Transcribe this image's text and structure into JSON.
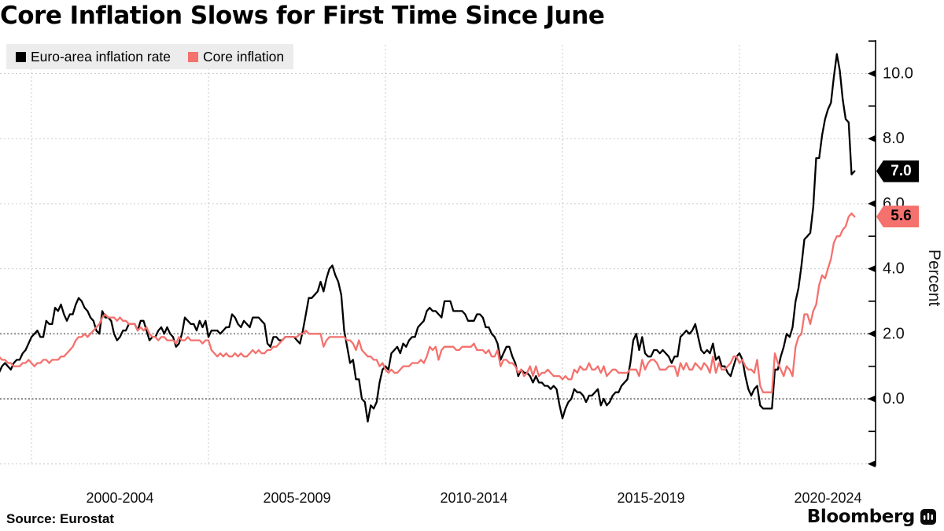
{
  "title": "Core Inflation Slows for First Time Since June",
  "source": "Source: Eurostat",
  "branding": {
    "logo_text": "Bloomberg"
  },
  "legend": {
    "items": [
      {
        "label": "Euro-area inflation rate",
        "color": "#000000"
      },
      {
        "label": "Core inflation",
        "color": "#f4716d"
      }
    ],
    "background": "#ececec"
  },
  "y_axis": {
    "title": "Percent",
    "tick_values": [
      10,
      8,
      6,
      4,
      2,
      0
    ],
    "tick_labels": [
      "10.0",
      "8.0",
      "6.0",
      "4.0",
      "2.0",
      "0.0"
    ],
    "minor_tick_values": [
      11,
      9,
      5,
      3,
      1,
      -1
    ],
    "arrow_tick_values": [
      10,
      8,
      6,
      4,
      2,
      0,
      -2
    ],
    "range": [
      -2.2,
      11.0
    ],
    "gridlines_light": [
      10,
      8,
      6,
      4,
      -2
    ],
    "gridlines_dark": [
      2,
      0
    ],
    "end_labels": [
      {
        "text": "7.0",
        "value": 7.0,
        "bg": "#000000",
        "fg": "#ffffff"
      },
      {
        "text": "5.6",
        "value": 5.6,
        "bg": "#f4716d",
        "fg": "#000000"
      }
    ]
  },
  "x_axis": {
    "gridline_years": [
      2000,
      2005,
      2010,
      2015,
      2020
    ],
    "labels": [
      {
        "text": "2000-2004",
        "center_year": 2002.5
      },
      {
        "text": "2005-2009",
        "center_year": 2007.5
      },
      {
        "text": "2010-2014",
        "center_year": 2012.5
      },
      {
        "text": "2015-2019",
        "center_year": 2017.5
      },
      {
        "text": "2020-2024",
        "center_year": 2022.5
      }
    ]
  },
  "chart_data": {
    "type": "line",
    "title": "Core Inflation Slows for First Time Since June",
    "ylabel": "Percent",
    "ylim": [
      -2.2,
      11.0
    ],
    "x_start": "1999-01",
    "x_end": "2023-04",
    "frequency": "monthly",
    "grid": "dotted",
    "legend_position": "top-left",
    "series": [
      {
        "name": "Euro-area inflation rate",
        "color": "#000000",
        "latest_label": "7.0",
        "values": [
          0.8,
          0.8,
          1.0,
          1.1,
          1.0,
          0.9,
          1.1,
          1.2,
          1.2,
          1.4,
          1.5,
          1.7,
          1.9,
          2.0,
          2.1,
          1.9,
          1.9,
          2.4,
          2.3,
          2.3,
          2.8,
          2.7,
          2.9,
          2.6,
          2.4,
          2.6,
          2.6,
          2.9,
          3.1,
          3.0,
          2.8,
          2.7,
          2.5,
          2.4,
          2.1,
          2.0,
          2.7,
          2.5,
          2.5,
          2.4,
          2.0,
          1.8,
          1.9,
          2.1,
          2.1,
          2.3,
          2.3,
          2.3,
          2.1,
          2.4,
          2.4,
          2.1,
          1.8,
          1.9,
          1.9,
          2.1,
          2.2,
          2.0,
          2.2,
          2.0,
          1.9,
          1.6,
          1.7,
          2.0,
          2.5,
          2.4,
          2.3,
          2.3,
          2.1,
          2.4,
          2.2,
          2.4,
          1.9,
          2.1,
          2.1,
          2.1,
          2.0,
          2.1,
          2.2,
          2.2,
          2.6,
          2.5,
          2.3,
          2.2,
          2.4,
          2.3,
          2.2,
          2.5,
          2.5,
          2.5,
          2.4,
          2.3,
          1.7,
          1.6,
          1.9,
          1.9,
          1.8,
          1.8,
          1.9,
          1.9,
          1.9,
          1.9,
          1.8,
          1.7,
          2.1,
          2.6,
          3.1,
          3.1,
          3.2,
          3.3,
          3.6,
          3.3,
          3.7,
          4.0,
          4.1,
          3.8,
          3.6,
          3.2,
          2.1,
          1.6,
          1.1,
          1.2,
          0.6,
          0.6,
          0.0,
          -0.1,
          -0.7,
          -0.2,
          -0.3,
          -0.1,
          0.5,
          0.9,
          1.0,
          0.9,
          1.4,
          1.5,
          1.6,
          1.4,
          1.7,
          1.6,
          1.8,
          1.9,
          1.9,
          2.2,
          2.3,
          2.4,
          2.7,
          2.8,
          2.7,
          2.7,
          2.6,
          2.5,
          3.0,
          3.0,
          3.0,
          2.7,
          2.7,
          2.7,
          2.7,
          2.6,
          2.4,
          2.4,
          2.4,
          2.6,
          2.6,
          2.5,
          2.2,
          2.2,
          2.0,
          1.9,
          1.7,
          1.2,
          1.4,
          1.6,
          1.6,
          1.3,
          1.1,
          0.7,
          0.9,
          0.8,
          0.8,
          0.7,
          0.5,
          0.7,
          0.5,
          0.5,
          0.4,
          0.4,
          0.3,
          0.4,
          0.3,
          -0.2,
          -0.6,
          -0.3,
          -0.1,
          0.0,
          0.3,
          0.2,
          0.2,
          0.1,
          -0.1,
          0.1,
          0.1,
          0.2,
          0.3,
          -0.2,
          0.0,
          -0.2,
          -0.1,
          0.1,
          0.2,
          0.2,
          0.4,
          0.5,
          0.6,
          1.1,
          1.8,
          2.0,
          1.5,
          1.9,
          1.4,
          1.3,
          1.3,
          1.5,
          1.5,
          1.4,
          1.5,
          1.4,
          1.3,
          1.1,
          1.3,
          1.3,
          1.9,
          2.0,
          2.1,
          2.0,
          2.1,
          2.3,
          1.9,
          1.5,
          1.4,
          1.5,
          1.4,
          1.7,
          1.2,
          1.3,
          1.0,
          1.0,
          0.8,
          0.7,
          1.0,
          1.3,
          1.4,
          1.2,
          0.7,
          0.3,
          0.1,
          0.3,
          0.4,
          -0.2,
          -0.3,
          -0.3,
          -0.3,
          -0.3,
          0.9,
          0.9,
          1.3,
          1.6,
          2.0,
          1.9,
          2.2,
          3.0,
          3.4,
          4.1,
          4.9,
          5.0,
          5.1,
          5.9,
          7.4,
          7.4,
          8.1,
          8.6,
          8.9,
          9.1,
          9.9,
          10.6,
          10.1,
          9.2,
          8.6,
          8.5,
          6.9,
          7.0
        ]
      },
      {
        "name": "Core inflation",
        "color": "#f4716d",
        "latest_label": "5.6",
        "values": [
          1.4,
          1.3,
          1.2,
          1.2,
          1.1,
          1.1,
          1.0,
          1.0,
          1.0,
          1.1,
          1.1,
          1.2,
          1.1,
          1.0,
          1.1,
          1.1,
          1.2,
          1.2,
          1.1,
          1.2,
          1.2,
          1.2,
          1.3,
          1.3,
          1.4,
          1.5,
          1.6,
          1.8,
          1.9,
          1.9,
          2.0,
          1.9,
          2.0,
          2.1,
          2.2,
          2.3,
          2.5,
          2.6,
          2.5,
          2.5,
          2.5,
          2.4,
          2.5,
          2.4,
          2.4,
          2.3,
          2.3,
          2.3,
          2.1,
          2.2,
          2.1,
          2.2,
          2.0,
          1.9,
          1.9,
          1.8,
          1.9,
          1.9,
          1.8,
          1.8,
          1.8,
          1.7,
          1.9,
          1.8,
          1.8,
          1.9,
          1.8,
          1.8,
          1.8,
          1.8,
          1.7,
          1.8,
          1.8,
          1.5,
          1.4,
          1.3,
          1.4,
          1.3,
          1.4,
          1.3,
          1.3,
          1.4,
          1.3,
          1.4,
          1.3,
          1.3,
          1.4,
          1.5,
          1.4,
          1.5,
          1.4,
          1.4,
          1.5,
          1.5,
          1.6,
          1.6,
          1.7,
          1.8,
          1.9,
          1.9,
          1.9,
          1.9,
          1.9,
          2.0,
          2.0,
          2.1,
          2.0,
          2.0,
          2.0,
          2.0,
          2.0,
          1.6,
          1.8,
          1.9,
          1.9,
          1.9,
          1.9,
          1.9,
          1.9,
          1.8,
          1.8,
          1.7,
          1.5,
          1.8,
          1.5,
          1.4,
          1.3,
          1.3,
          1.2,
          1.2,
          1.0,
          1.1,
          0.9,
          0.8,
          0.9,
          0.8,
          0.8,
          0.9,
          1.0,
          1.0,
          1.0,
          1.1,
          1.1,
          1.1,
          1.2,
          1.1,
          1.3,
          1.6,
          1.5,
          1.6,
          1.2,
          1.5,
          1.6,
          1.6,
          1.6,
          1.6,
          1.5,
          1.5,
          1.6,
          1.6,
          1.6,
          1.6,
          1.7,
          1.5,
          1.5,
          1.5,
          1.4,
          1.5,
          1.3,
          1.3,
          1.5,
          1.0,
          1.2,
          1.2,
          1.1,
          1.1,
          1.0,
          0.8,
          0.9,
          0.7,
          0.8,
          1.0,
          0.7,
          1.0,
          0.7,
          0.8,
          0.8,
          0.9,
          0.8,
          0.7,
          0.7,
          0.7,
          0.6,
          0.7,
          0.6,
          0.6,
          0.9,
          0.8,
          1.0,
          0.9,
          0.9,
          1.1,
          0.9,
          0.9,
          1.0,
          0.8,
          1.0,
          0.7,
          0.8,
          0.9,
          0.9,
          0.8,
          0.8,
          0.8,
          0.8,
          0.9,
          0.9,
          0.9,
          0.7,
          1.2,
          0.9,
          1.1,
          1.2,
          1.2,
          1.1,
          0.9,
          0.9,
          0.9,
          1.0,
          1.0,
          1.0,
          0.7,
          1.1,
          0.9,
          1.1,
          0.9,
          0.9,
          1.1,
          1.0,
          0.9,
          1.1,
          1.0,
          0.8,
          1.3,
          0.8,
          1.1,
          0.9,
          0.9,
          1.0,
          1.1,
          1.3,
          1.3,
          1.1,
          1.2,
          1.0,
          0.9,
          0.9,
          0.8,
          1.2,
          0.4,
          0.2,
          0.2,
          0.2,
          0.2,
          1.4,
          1.1,
          0.9,
          0.7,
          1.0,
          0.9,
          0.7,
          1.6,
          1.9,
          2.0,
          2.6,
          2.6,
          2.3,
          2.7,
          2.9,
          3.5,
          3.8,
          3.7,
          4.0,
          4.3,
          4.8,
          5.0,
          5.0,
          5.2,
          5.3,
          5.6,
          5.7,
          5.6
        ]
      }
    ]
  }
}
